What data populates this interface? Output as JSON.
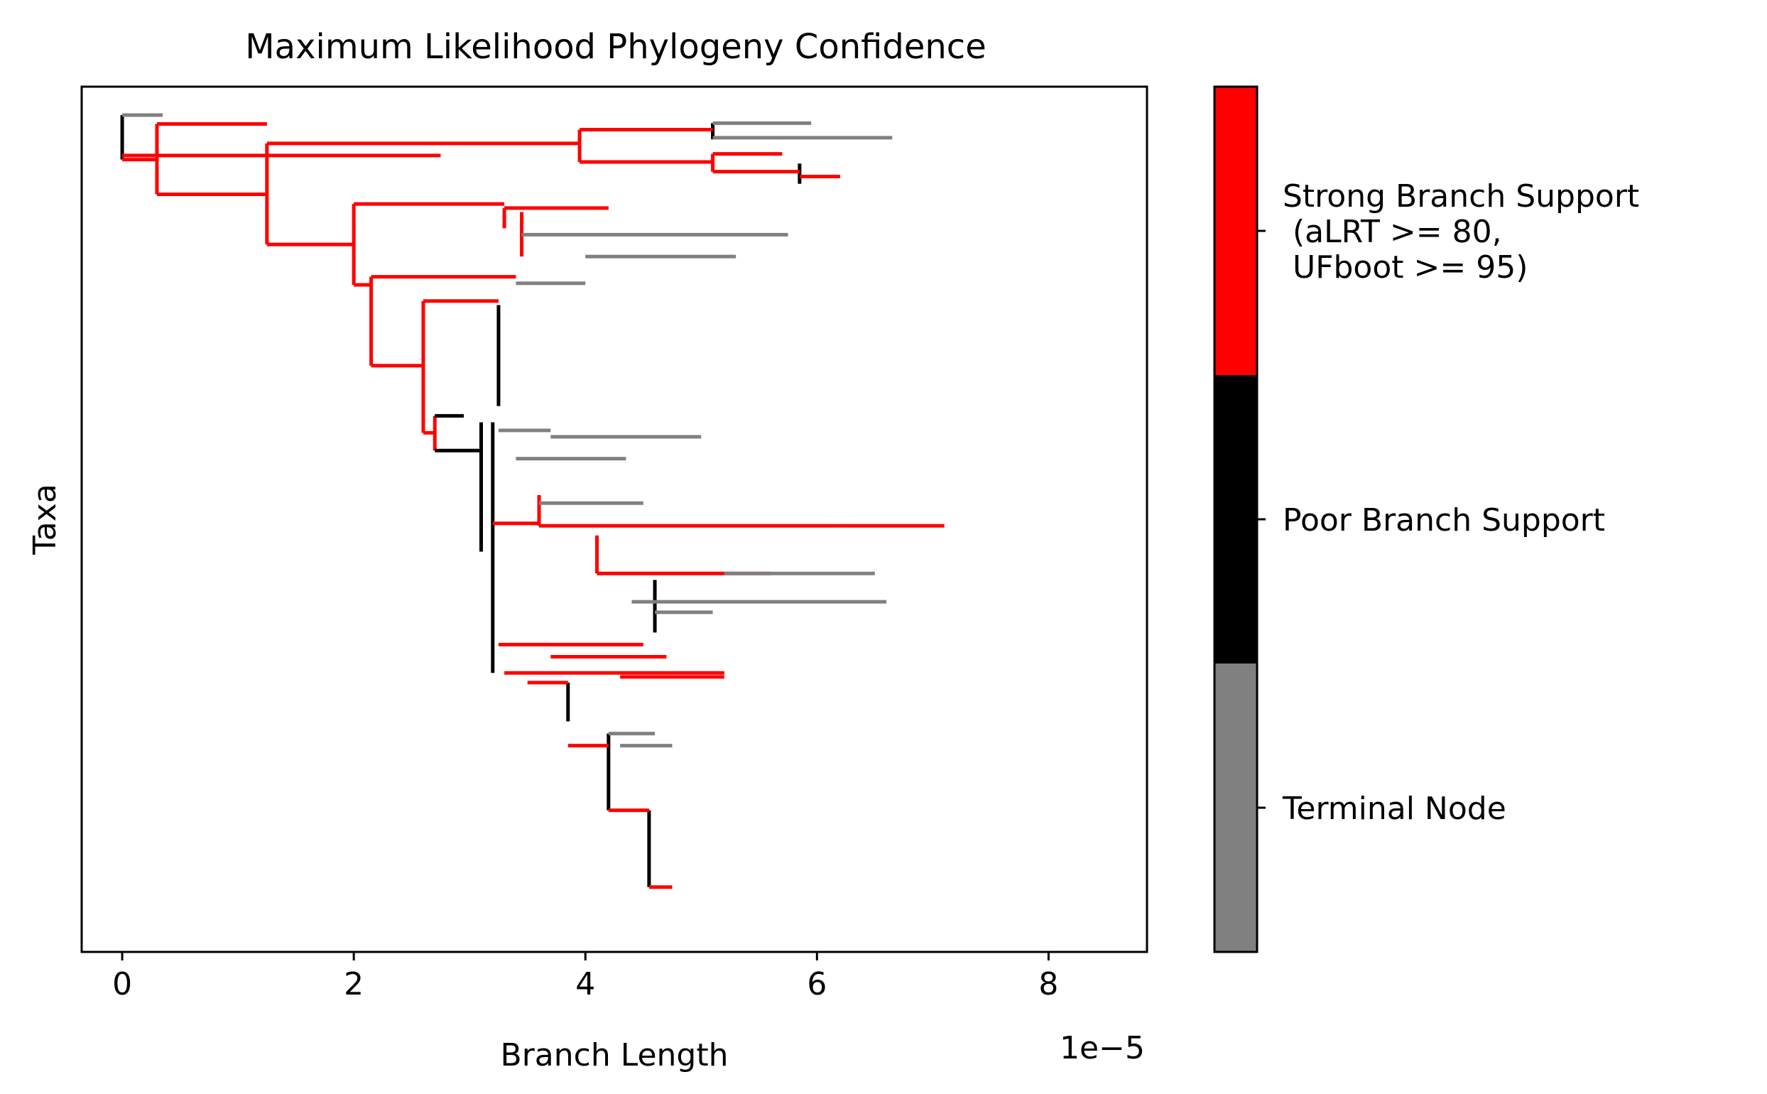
{
  "chart_data": {
    "type": "tree",
    "title": "Maximum Likelihood Phylogeny Confidence",
    "xlabel": "Branch Length",
    "ylabel": "Taxa",
    "x_offset_label": "1e−5",
    "xlim": [
      -0.35,
      8.85
    ],
    "x_ticks": [
      {
        "value": 0,
        "label": "0"
      },
      {
        "value": 2,
        "label": "2"
      },
      {
        "value": 4,
        "label": "4"
      },
      {
        "value": 6,
        "label": "6"
      },
      {
        "value": 8,
        "label": "8"
      }
    ],
    "colors": {
      "strong": "#ff0000",
      "poor": "#000000",
      "terminal": "#808080"
    },
    "colorbar": [
      {
        "key": "terminal",
        "color": "#808080",
        "label": "Terminal Node"
      },
      {
        "key": "poor",
        "color": "#000000",
        "label": "Poor Branch Support"
      },
      {
        "key": "strong",
        "color": "#ff0000",
        "label": "Strong Branch Support\n (aLRT >= 80,\n UFboot >= 95)"
      }
    ],
    "branches": [
      {
        "x0": 0.0,
        "x1": 0.35,
        "y": 0.0,
        "c": "terminal"
      },
      {
        "x0": 0.0,
        "x1": 2.75,
        "y": 0.05,
        "c": "strong"
      },
      {
        "x0": 0.0,
        "x1": 0.3,
        "y": 0.055,
        "c": "strong"
      },
      {
        "x0": 0.3,
        "x1": 1.25,
        "y": 0.011,
        "c": "strong"
      },
      {
        "x0": 0.3,
        "x1": 1.25,
        "y": 0.098,
        "c": "strong"
      },
      {
        "x0": 1.25,
        "x1": 3.95,
        "y": 0.035,
        "c": "strong"
      },
      {
        "x0": 1.25,
        "x1": 2.0,
        "y": 0.16,
        "c": "strong"
      },
      {
        "x0": 3.95,
        "x1": 5.1,
        "y": 0.018,
        "c": "strong"
      },
      {
        "x0": 3.95,
        "x1": 5.1,
        "y": 0.058,
        "c": "strong"
      },
      {
        "x0": 5.1,
        "x1": 5.95,
        "y": 0.01,
        "c": "terminal"
      },
      {
        "x0": 5.1,
        "x1": 6.65,
        "y": 0.028,
        "c": "terminal"
      },
      {
        "x0": 5.1,
        "x1": 5.7,
        "y": 0.048,
        "c": "strong"
      },
      {
        "x0": 5.1,
        "x1": 5.85,
        "y": 0.07,
        "c": "strong"
      },
      {
        "x0": 5.85,
        "x1": 6.2,
        "y": 0.076,
        "c": "strong"
      },
      {
        "x0": 2.0,
        "x1": 3.3,
        "y": 0.11,
        "c": "strong"
      },
      {
        "x0": 2.0,
        "x1": 2.15,
        "y": 0.21,
        "c": "strong"
      },
      {
        "x0": 3.3,
        "x1": 4.2,
        "y": 0.115,
        "c": "strong"
      },
      {
        "x0": 3.45,
        "x1": 5.75,
        "y": 0.148,
        "c": "terminal"
      },
      {
        "x0": 4.0,
        "x1": 5.3,
        "y": 0.175,
        "c": "terminal"
      },
      {
        "x0": 2.15,
        "x1": 3.4,
        "y": 0.2,
        "c": "strong"
      },
      {
        "x0": 2.15,
        "x1": 2.6,
        "y": 0.31,
        "c": "strong"
      },
      {
        "x0": 3.4,
        "x1": 4.0,
        "y": 0.208,
        "c": "terminal"
      },
      {
        "x0": 2.6,
        "x1": 3.25,
        "y": 0.23,
        "c": "strong"
      },
      {
        "x0": 2.6,
        "x1": 2.7,
        "y": 0.393,
        "c": "strong"
      },
      {
        "x0": 2.7,
        "x1": 2.95,
        "y": 0.372,
        "c": "poor"
      },
      {
        "x0": 2.7,
        "x1": 3.1,
        "y": 0.415,
        "c": "poor"
      },
      {
        "x0": 3.25,
        "x1": 3.7,
        "y": 0.39,
        "c": "terminal"
      },
      {
        "x0": 3.7,
        "x1": 5.0,
        "y": 0.398,
        "c": "terminal"
      },
      {
        "x0": 3.4,
        "x1": 4.35,
        "y": 0.425,
        "c": "terminal"
      },
      {
        "x0": 3.2,
        "x1": 3.6,
        "y": 0.505,
        "c": "strong"
      },
      {
        "x0": 3.6,
        "x1": 6.2,
        "y": 0.508,
        "c": "strong"
      },
      {
        "x0": 6.2,
        "x1": 7.1,
        "y": 0.508,
        "c": "strong"
      },
      {
        "x0": 3.6,
        "x1": 4.5,
        "y": 0.48,
        "c": "terminal"
      },
      {
        "x0": 4.1,
        "x1": 5.6,
        "y": 0.567,
        "c": "strong"
      },
      {
        "x0": 5.2,
        "x1": 6.5,
        "y": 0.567,
        "c": "terminal"
      },
      {
        "x0": 4.4,
        "x1": 6.6,
        "y": 0.602,
        "c": "terminal"
      },
      {
        "x0": 4.6,
        "x1": 5.1,
        "y": 0.615,
        "c": "terminal"
      },
      {
        "x0": 3.25,
        "x1": 4.5,
        "y": 0.655,
        "c": "strong"
      },
      {
        "x0": 3.7,
        "x1": 4.7,
        "y": 0.67,
        "c": "strong"
      },
      {
        "x0": 3.3,
        "x1": 5.2,
        "y": 0.69,
        "c": "strong"
      },
      {
        "x0": 4.3,
        "x1": 5.2,
        "y": 0.695,
        "c": "strong"
      },
      {
        "x0": 3.5,
        "x1": 3.85,
        "y": 0.702,
        "c": "strong"
      },
      {
        "x0": 3.85,
        "x1": 4.2,
        "y": 0.78,
        "c": "strong"
      },
      {
        "x0": 4.2,
        "x1": 4.6,
        "y": 0.765,
        "c": "terminal"
      },
      {
        "x0": 4.3,
        "x1": 4.75,
        "y": 0.78,
        "c": "terminal"
      },
      {
        "x0": 4.2,
        "x1": 4.55,
        "y": 0.86,
        "c": "strong"
      },
      {
        "x0": 4.55,
        "x1": 4.75,
        "y": 0.955,
        "c": "strong"
      }
    ],
    "connectors": [
      {
        "x": 0.0,
        "y0": 0.0,
        "y1": 0.055,
        "c": "poor"
      },
      {
        "x": 0.3,
        "y0": 0.011,
        "y1": 0.098,
        "c": "strong"
      },
      {
        "x": 1.25,
        "y0": 0.035,
        "y1": 0.16,
        "c": "strong"
      },
      {
        "x": 3.95,
        "y0": 0.018,
        "y1": 0.058,
        "c": "strong"
      },
      {
        "x": 5.1,
        "y0": 0.01,
        "y1": 0.03,
        "c": "poor"
      },
      {
        "x": 5.1,
        "y0": 0.048,
        "y1": 0.07,
        "c": "strong"
      },
      {
        "x": 5.85,
        "y0": 0.06,
        "y1": 0.085,
        "c": "poor"
      },
      {
        "x": 2.0,
        "y0": 0.11,
        "y1": 0.21,
        "c": "strong"
      },
      {
        "x": 2.15,
        "y0": 0.2,
        "y1": 0.31,
        "c": "strong"
      },
      {
        "x": 3.3,
        "y0": 0.115,
        "y1": 0.14,
        "c": "strong"
      },
      {
        "x": 3.45,
        "y0": 0.12,
        "y1": 0.175,
        "c": "strong"
      },
      {
        "x": 2.6,
        "y0": 0.23,
        "y1": 0.393,
        "c": "strong"
      },
      {
        "x": 2.7,
        "y0": 0.372,
        "y1": 0.415,
        "c": "strong"
      },
      {
        "x": 3.25,
        "y0": 0.235,
        "y1": 0.36,
        "c": "poor"
      },
      {
        "x": 3.1,
        "y0": 0.38,
        "y1": 0.54,
        "c": "poor"
      },
      {
        "x": 3.2,
        "y0": 0.38,
        "y1": 0.69,
        "c": "poor"
      },
      {
        "x": 3.6,
        "y0": 0.47,
        "y1": 0.508,
        "c": "strong"
      },
      {
        "x": 4.1,
        "y0": 0.52,
        "y1": 0.567,
        "c": "strong"
      },
      {
        "x": 4.6,
        "y0": 0.575,
        "y1": 0.64,
        "c": "poor"
      },
      {
        "x": 3.85,
        "y0": 0.702,
        "y1": 0.75,
        "c": "poor"
      },
      {
        "x": 4.2,
        "y0": 0.765,
        "y1": 0.86,
        "c": "poor"
      },
      {
        "x": 4.55,
        "y0": 0.86,
        "y1": 0.955,
        "c": "poor"
      }
    ]
  }
}
